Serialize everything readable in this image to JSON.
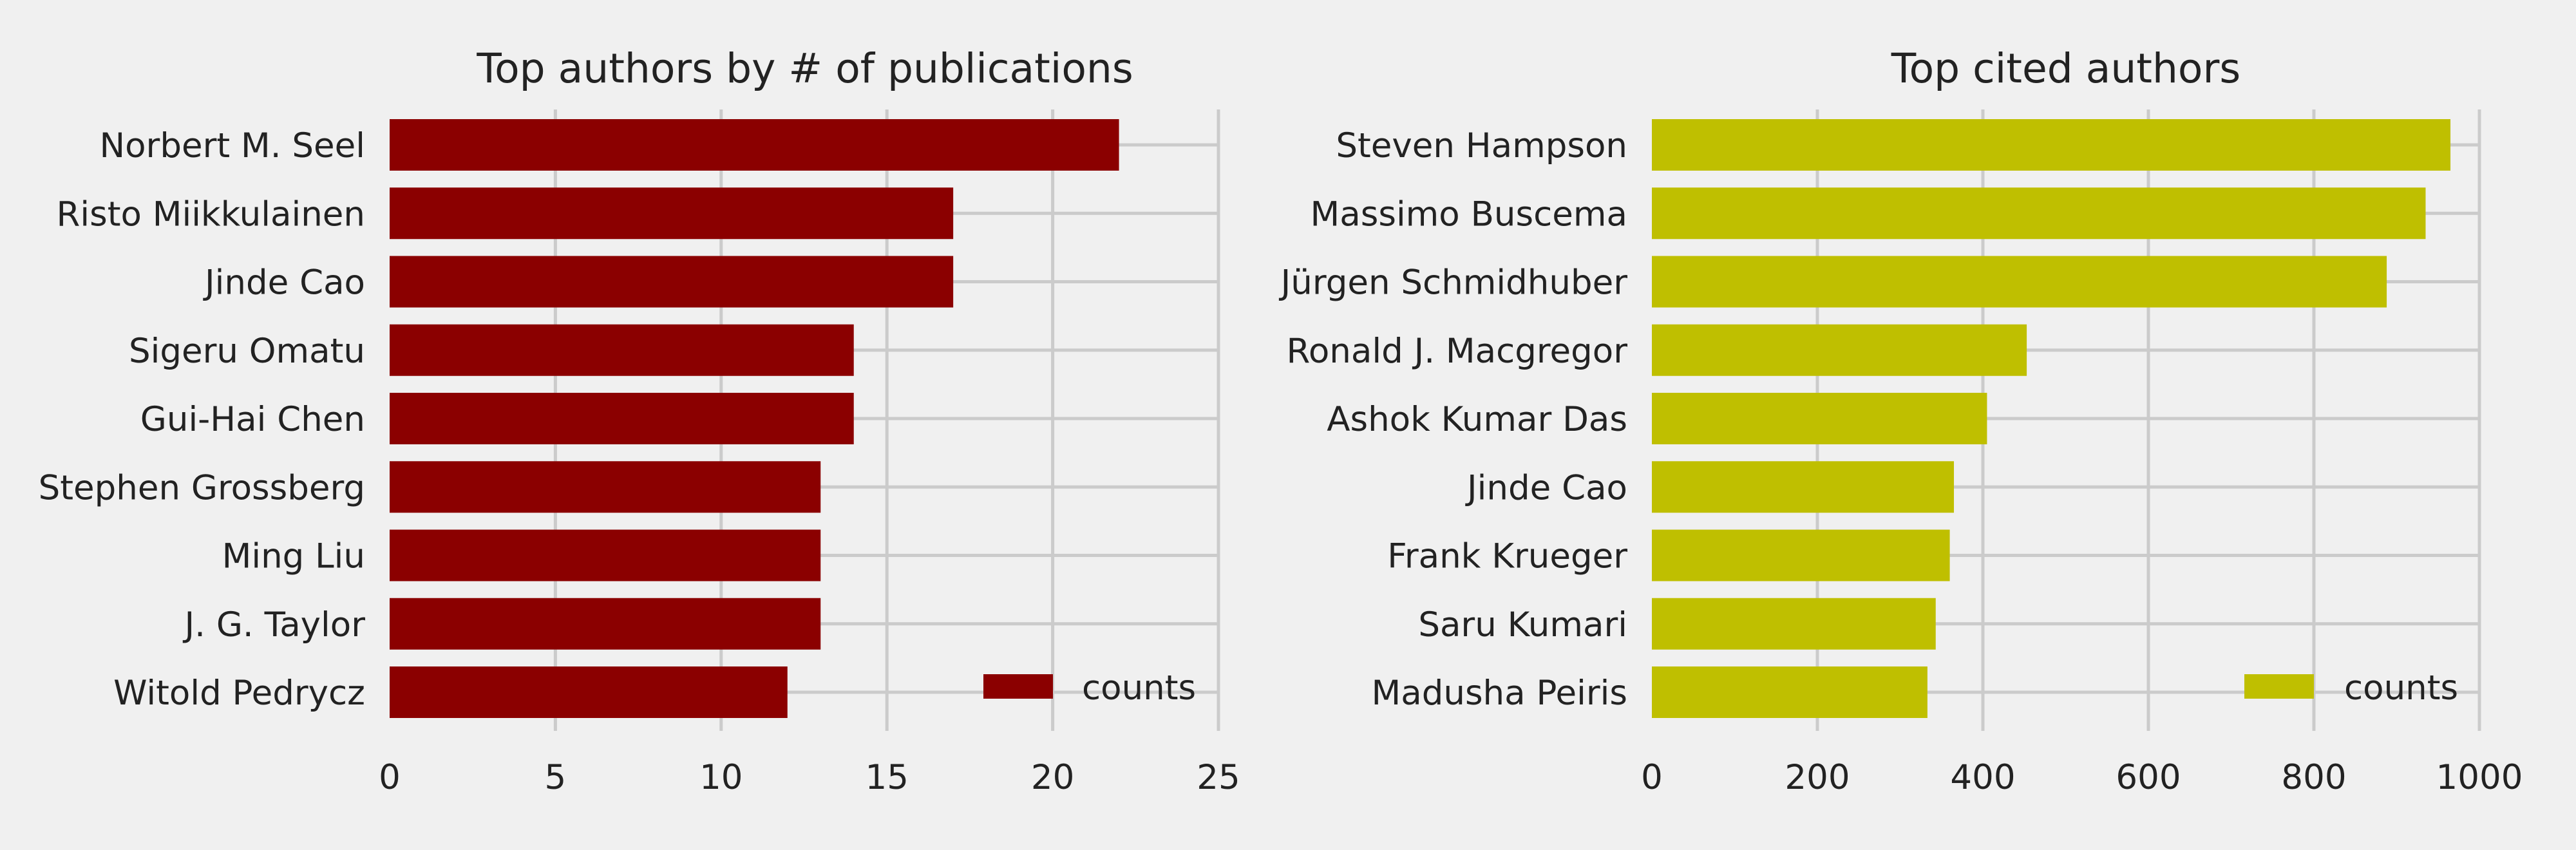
{
  "chart_data": [
    {
      "type": "bar",
      "orientation": "horizontal",
      "title": "Top authors by # of publications",
      "categories": [
        "Norbert M. Seel",
        "Risto Miikkulainen",
        "Jinde Cao",
        "Sigeru Omatu",
        "Gui-Hai Chen",
        "Stephen Grossberg",
        "Ming Liu",
        "J. G. Taylor",
        "Witold Pedrycz"
      ],
      "series": [
        {
          "name": "counts",
          "values": [
            22,
            17,
            17,
            14,
            14,
            13,
            13,
            13,
            12
          ],
          "color": "#8b0000"
        }
      ],
      "xlim": [
        0,
        25
      ],
      "xticks": [
        "0",
        "5",
        "10",
        "15",
        "20",
        "25"
      ],
      "xlabel": "",
      "ylabel": "",
      "grid": true,
      "legend": "bottom-right"
    },
    {
      "type": "bar",
      "orientation": "horizontal",
      "title": "Top cited authors",
      "categories": [
        "Steven Hampson",
        "Massimo Buscema",
        "Jürgen Schmidhuber",
        "Ronald J. Macgregor",
        "Ashok Kumar Das",
        "Jinde Cao",
        "Frank Krueger",
        "Saru Kumari",
        "Madusha Peiris"
      ],
      "series": [
        {
          "name": "counts",
          "values": [
            965,
            935,
            888,
            453,
            405,
            365,
            360,
            343,
            333
          ],
          "color": "#bfbf00"
        }
      ],
      "xlim": [
        0,
        1000
      ],
      "xticks": [
        "0",
        "200",
        "400",
        "600",
        "800",
        "1000"
      ],
      "xlabel": "",
      "ylabel": "",
      "grid": true,
      "legend": "bottom-right"
    }
  ]
}
